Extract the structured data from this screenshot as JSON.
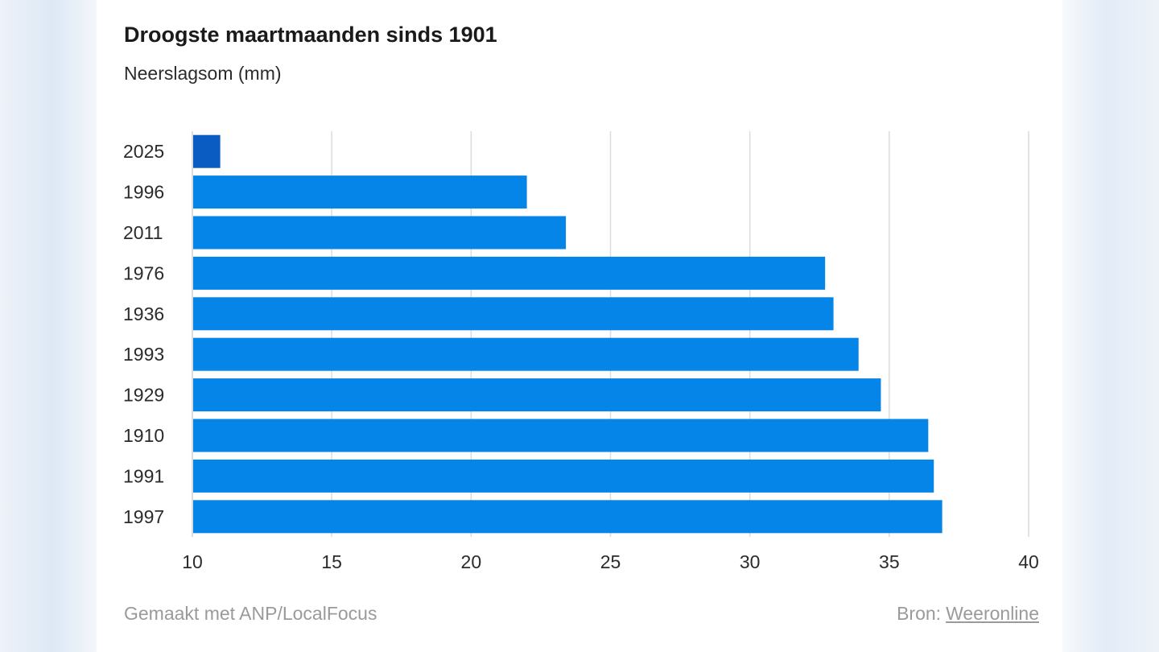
{
  "header": {
    "title": "Droogste maartmaanden sinds 1901",
    "subtitle": "Neerslagsom (mm)"
  },
  "footer": {
    "credit": "Gemaakt met ANP/LocalFocus",
    "source_label": "Bron:",
    "source_link": "Weeronline"
  },
  "colors": {
    "bar": "#0585e8",
    "highlight": "#0a5cc2",
    "grid": "#dcdcdc"
  },
  "chart_data": {
    "type": "bar",
    "orientation": "horizontal",
    "title": "Droogste maartmaanden sinds 1901",
    "subtitle": "Neerslagsom (mm)",
    "categories": [
      "2025",
      "1996",
      "2011",
      "1976",
      "1936",
      "1993",
      "1929",
      "1910",
      "1991",
      "1997"
    ],
    "values": [
      11.0,
      22.0,
      23.4,
      32.7,
      33.0,
      33.9,
      34.7,
      36.4,
      36.6,
      36.9
    ],
    "highlight": "2025",
    "xlim": [
      10,
      40
    ],
    "xticks": [
      10,
      15,
      20,
      25,
      30,
      35,
      40
    ],
    "grid": true,
    "legend": "none"
  }
}
